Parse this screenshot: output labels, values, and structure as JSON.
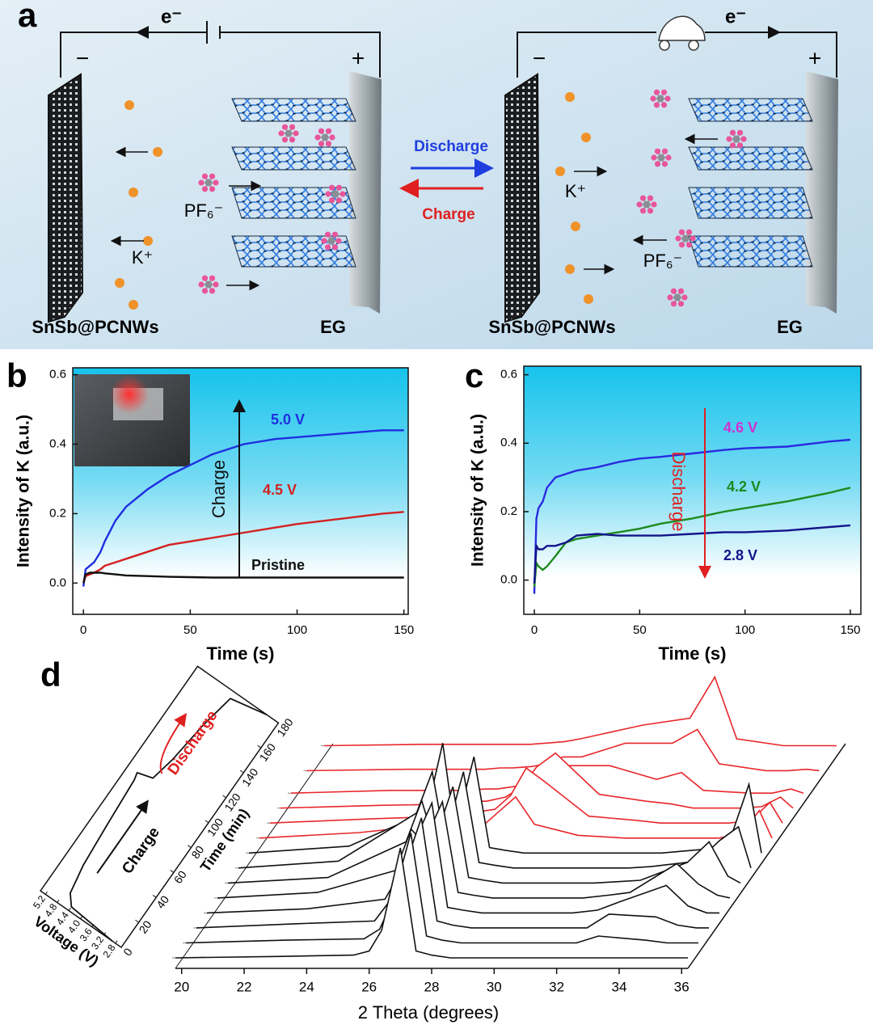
{
  "diagram": {
    "label": "a",
    "left_cell": {
      "electron": "e⁻",
      "minus": "−",
      "plus": "+",
      "cation": "K⁺",
      "anion": "PF₆⁻",
      "anode": "SnSb@PCNWs",
      "cathode": "EG"
    },
    "right_cell": {
      "electron": "e⁻",
      "minus": "−",
      "plus": "+",
      "cation": "K⁺",
      "anion": "PF₆⁻",
      "anode": "SnSb@PCNWs",
      "cathode": "EG"
    },
    "discharge": "Discharge",
    "charge": "Charge"
  },
  "chart_data": [
    {
      "type": "line",
      "label": "b",
      "xlabel": "Time (s)",
      "ylabel": "Intensity of K (a.u.)",
      "annotation": "Charge",
      "x": [
        0,
        1,
        3,
        5,
        8,
        10,
        15,
        20,
        30,
        40,
        50,
        60,
        75,
        90,
        100,
        120,
        140,
        150
      ],
      "xlim": [
        -5,
        152
      ],
      "ylim": [
        -0.09,
        0.62
      ],
      "xticks": [
        0,
        50,
        100,
        150
      ],
      "yticks": [
        {
          "value": 0,
          "label": "0.0"
        },
        0.2,
        0.4,
        0.6
      ],
      "series": [
        {
          "name": "5.0 V",
          "color": "#1f2ee0",
          "values": [
            -0.01,
            0.04,
            0.05,
            0.06,
            0.09,
            0.12,
            0.18,
            0.22,
            0.27,
            0.31,
            0.34,
            0.37,
            0.4,
            0.415,
            0.42,
            0.43,
            0.44,
            0.44
          ]
        },
        {
          "name": "4.5 V",
          "color": "#d42020",
          "values": [
            0,
            0.02,
            0.025,
            0.03,
            0.04,
            0.05,
            0.06,
            0.07,
            0.09,
            0.11,
            0.12,
            0.13,
            0.145,
            0.16,
            0.17,
            0.185,
            0.2,
            0.205
          ]
        },
        {
          "name": "Pristine",
          "color": "#111111",
          "values": [
            0,
            0.025,
            0.03,
            0.03,
            0.03,
            0.028,
            0.025,
            0.022,
            0.02,
            0.018,
            0.017,
            0.016,
            0.016,
            0.016,
            0.016,
            0.016,
            0.016,
            0.016
          ]
        }
      ]
    },
    {
      "type": "line",
      "label": "c",
      "xlabel": "Time (s)",
      "ylabel": "Intensity of K (a.u.)",
      "annotation": "Discharge",
      "x": [
        0,
        1,
        2,
        4,
        6,
        10,
        15,
        20,
        30,
        40,
        50,
        60,
        75,
        90,
        100,
        120,
        140,
        150
      ],
      "xlim": [
        -5,
        155
      ],
      "ylim": [
        -0.1,
        0.625
      ],
      "xticks": [
        0,
        50,
        100,
        150
      ],
      "yticks": [
        {
          "value": 0,
          "label": "0.0"
        },
        0.2,
        0.4,
        0.6
      ],
      "series": [
        {
          "name": "4.6 V",
          "color": "#2a2ae0",
          "label_color": "#d030d0",
          "values": [
            -0.04,
            0.18,
            0.21,
            0.23,
            0.27,
            0.3,
            0.31,
            0.32,
            0.33,
            0.345,
            0.355,
            0.36,
            0.37,
            0.38,
            0.385,
            0.39,
            0.405,
            0.41
          ]
        },
        {
          "name": "4.2 V",
          "color": "#1e8a1e",
          "values": [
            -0.02,
            0.05,
            0.04,
            0.03,
            0.04,
            0.07,
            0.11,
            0.12,
            0.13,
            0.14,
            0.15,
            0.165,
            0.18,
            0.2,
            0.21,
            0.23,
            0.255,
            0.27
          ]
        },
        {
          "name": "2.8 V",
          "color": "#14148a",
          "values": [
            -0.01,
            0.1,
            0.09,
            0.09,
            0.1,
            0.1,
            0.11,
            0.13,
            0.135,
            0.13,
            0.13,
            0.13,
            0.135,
            0.14,
            0.14,
            0.145,
            0.155,
            0.16
          ]
        }
      ]
    },
    {
      "type": "waterfall",
      "label": "d",
      "xlabel": "2 Theta (degrees)",
      "time_label": "Time (min)",
      "xlim": [
        19.8,
        36.2
      ],
      "ylim": [
        1,
        10
      ],
      "xticks": [
        20,
        22,
        24,
        26,
        28,
        30,
        32,
        34,
        36
      ],
      "time_ticks": [
        0,
        20,
        40,
        60,
        80,
        100,
        120,
        140,
        160,
        180
      ],
      "x": [
        19.8,
        23,
        25.5,
        26,
        26.4,
        27,
        27.5,
        28,
        28.6,
        30,
        31.5,
        32.3,
        33,
        34.5,
        35.2,
        35.8,
        36.2
      ],
      "series": [
        {
          "time": 0,
          "color": "#111111",
          "values": [
            1,
            1.1,
            1.2,
            1.5,
            3,
            9,
            1.5,
            1.2,
            1,
            1,
            1,
            1,
            1,
            1,
            1,
            1,
            1
          ]
        },
        {
          "time": 12,
          "color": "#111111",
          "values": [
            1,
            1.2,
            1.3,
            2,
            4,
            9,
            1.5,
            1.2,
            1,
            1,
            1,
            1,
            1.5,
            1.2,
            1,
            1,
            1
          ]
        },
        {
          "time": 24,
          "color": "#111111",
          "values": [
            1,
            1.3,
            1.5,
            3,
            5,
            9,
            1.5,
            1.2,
            1,
            1,
            1,
            1,
            2,
            1.8,
            1.2,
            1,
            1
          ]
        },
        {
          "time": 36,
          "color": "#111111",
          "values": [
            1,
            1.3,
            2,
            4,
            6,
            9,
            1.4,
            1.2,
            1,
            1,
            1,
            1.2,
            1.8,
            3,
            1.5,
            1,
            1
          ]
        },
        {
          "time": 48,
          "color": "#111111",
          "values": [
            1,
            1.4,
            3,
            6,
            5,
            8,
            1.4,
            1.2,
            1,
            1,
            1,
            1.2,
            1.4,
            3.5,
            2,
            1.2,
            1
          ]
        },
        {
          "time": 60,
          "color": "#111111",
          "values": [
            1,
            1.4,
            4,
            7,
            4,
            8,
            1.4,
            1.2,
            1,
            1,
            1,
            1.1,
            1.2,
            2.5,
            4,
            1.5,
            1
          ]
        },
        {
          "time": 72,
          "color": "#111111",
          "values": [
            1,
            1.5,
            5,
            8,
            3,
            8,
            1.4,
            1.2,
            1,
            1,
            1,
            1,
            1.1,
            1.5,
            3,
            4,
            1
          ]
        },
        {
          "time": 84,
          "color": "#111111",
          "values": [
            1,
            1.5,
            4,
            9,
            2.5,
            8,
            1.4,
            1.2,
            1,
            1,
            1,
            1,
            1,
            1.3,
            2,
            6,
            1
          ]
        },
        {
          "time": 96,
          "color": "#e8262a",
          "values": [
            1,
            1.4,
            2,
            3,
            2,
            2,
            3,
            4,
            2,
            1.2,
            1,
            1,
            1,
            1,
            1.3,
            3,
            1
          ]
        },
        {
          "time": 108,
          "color": "#e8262a",
          "values": [
            1,
            1.3,
            1.5,
            2,
            1.8,
            2,
            3,
            5,
            4,
            1.5,
            1.2,
            1,
            1,
            1,
            1.2,
            2.5,
            1
          ]
        },
        {
          "time": 120,
          "color": "#e8262a",
          "values": [
            1,
            1.2,
            1.3,
            1.5,
            1.5,
            1.8,
            2.5,
            4,
            5,
            2,
            1.5,
            1.3,
            1,
            1,
            1.1,
            1.8,
            1
          ]
        },
        {
          "time": 132,
          "color": "#e8262a",
          "values": [
            1,
            1.2,
            1.2,
            1.3,
            1.3,
            1.5,
            2,
            3,
            3,
            3,
            2,
            2.5,
            1.2,
            1,
            1,
            1.3,
            1
          ]
        },
        {
          "time": 150,
          "color": "#e8262a",
          "values": [
            1,
            1.1,
            1.1,
            1.2,
            1.2,
            1.3,
            1.5,
            2,
            2,
            3,
            3,
            4,
            1.5,
            1,
            1,
            1.1,
            1
          ]
        },
        {
          "time": 170,
          "color": "#e8262a",
          "values": [
            1,
            1.1,
            1.1,
            1.1,
            1.1,
            1.2,
            1.3,
            1.5,
            1.8,
            2.5,
            3,
            6,
            1.5,
            1,
            1,
            1,
            1
          ]
        }
      ],
      "voltage": {
        "label": "Voltage (V)",
        "ticks": [
          2.8,
          3.2,
          3.6,
          {
            "value": 4,
            "label": "4.0"
          },
          4.4,
          4.8,
          5.2
        ],
        "time": [
          0,
          3,
          10,
          30,
          60,
          95,
          100,
          103,
          120,
          150,
          175,
          180
        ],
        "values": [
          2.9,
          4.4,
          4.65,
          4.8,
          4.9,
          5.0,
          5.05,
          4.6,
          4.45,
          4.3,
          4.1,
          3.0
        ],
        "charge_label": "Charge",
        "discharge_label": "Discharge"
      }
    }
  ]
}
